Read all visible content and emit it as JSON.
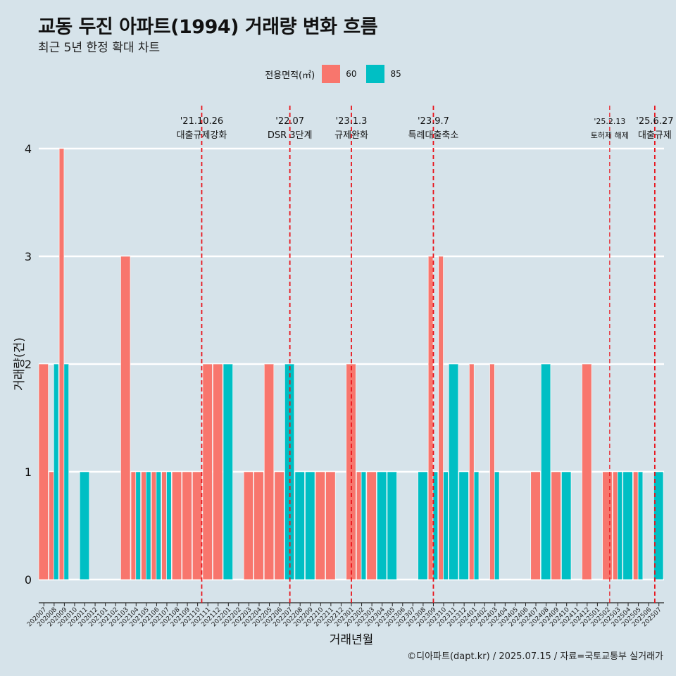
{
  "title": "교동 두진 아파트(1994) 거래량 변화 흐름",
  "subtitle": "최근 5년 한정 확대 차트",
  "legend": {
    "title": "전용면적(㎡)",
    "items": [
      {
        "label": "60",
        "color": "#f8766d"
      },
      {
        "label": "85",
        "color": "#00bfc4"
      }
    ]
  },
  "caption": "©디아파트(dapt.kr) / 2025.07.15 / 자료=국토교통부 실거래가",
  "chart_data": {
    "type": "bar",
    "xlabel": "거래년월",
    "ylabel": "거래량(건)",
    "ylim": [
      0,
      4
    ],
    "yticks": [
      0,
      1,
      2,
      3,
      4
    ],
    "categories": [
      "202007",
      "202008",
      "202009",
      "202010",
      "202011",
      "202012",
      "202101",
      "202102",
      "202103",
      "202104",
      "202105",
      "202106",
      "202107",
      "202108",
      "202109",
      "202110",
      "202111",
      "202112",
      "202201",
      "202202",
      "202203",
      "202204",
      "202205",
      "202206",
      "202207",
      "202208",
      "202209",
      "202210",
      "202211",
      "202212",
      "202301",
      "202302",
      "202303",
      "202304",
      "202305",
      "202306",
      "202307",
      "202308",
      "202309",
      "202310",
      "202311",
      "202312",
      "202401",
      "202402",
      "202403",
      "202404",
      "202405",
      "202406",
      "202407",
      "202408",
      "202409",
      "202410",
      "202411",
      "202412",
      "202501",
      "202502",
      "202503",
      "202504",
      "202505",
      "202506",
      "202507"
    ],
    "series": [
      {
        "name": "60",
        "color": "#f8766d",
        "values": [
          2,
          1,
          4,
          0,
          0,
          0,
          0,
          0,
          3,
          1,
          1,
          1,
          1,
          1,
          1,
          1,
          2,
          2,
          0,
          0,
          1,
          1,
          2,
          1,
          0,
          0,
          0,
          1,
          1,
          0,
          2,
          1,
          1,
          0,
          0,
          0,
          0,
          0,
          3,
          3,
          0,
          0,
          2,
          0,
          2,
          0,
          0,
          0,
          1,
          0,
          1,
          0,
          0,
          2,
          0,
          1,
          1,
          0,
          1,
          0,
          0
        ]
      },
      {
        "name": "85",
        "color": "#00bfc4",
        "values": [
          0,
          2,
          2,
          0,
          1,
          0,
          0,
          0,
          0,
          1,
          1,
          1,
          1,
          0,
          0,
          0,
          0,
          0,
          2,
          0,
          0,
          0,
          0,
          0,
          2,
          1,
          1,
          0,
          0,
          0,
          0,
          1,
          0,
          1,
          1,
          0,
          0,
          1,
          1,
          1,
          2,
          1,
          1,
          0,
          1,
          0,
          0,
          0,
          0,
          2,
          0,
          1,
          0,
          0,
          0,
          0,
          1,
          1,
          1,
          0,
          1
        ]
      }
    ],
    "events": [
      {
        "date": "'21.10.26",
        "label": "대출규제강화",
        "month": "202110",
        "offset": 0.4
      },
      {
        "date": "'22.07",
        "label": "DSR 3단계",
        "month": "202207",
        "offset": 0.0
      },
      {
        "date": "'23.1.3",
        "label": "규제완화",
        "month": "202301",
        "offset": 0.0
      },
      {
        "date": "'23.9.7",
        "label": "특례대출축소",
        "month": "202309",
        "offset": 0.0
      },
      {
        "date": "'25.2.13",
        "label": "토허제 해제",
        "month": "202502",
        "offset": 0.2
      },
      {
        "date": "'25.6.27",
        "label": "대출규제",
        "month": "202506",
        "offset": 0.6
      }
    ]
  }
}
